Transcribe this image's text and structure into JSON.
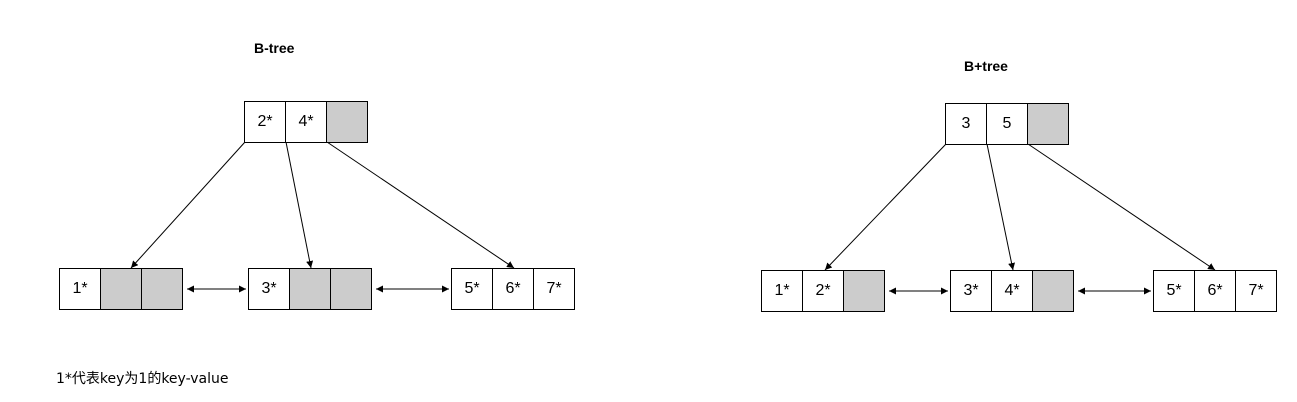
{
  "btree": {
    "title": "B-tree",
    "root": [
      "2*",
      "4*",
      ""
    ],
    "leaves": [
      [
        "1*",
        "",
        ""
      ],
      [
        "3*",
        "",
        ""
      ],
      [
        "5*",
        "6*",
        "7*"
      ]
    ]
  },
  "bplustree": {
    "title": "B+tree",
    "root": [
      "3",
      "5",
      ""
    ],
    "leaves": [
      [
        "1*",
        "2*",
        ""
      ],
      [
        "3*",
        "4*",
        ""
      ],
      [
        "5*",
        "6*",
        "7*"
      ]
    ]
  },
  "note": "1*代表key为1的key-value",
  "colors": {
    "empty_cell": "#cccccc",
    "border": "#000000",
    "background": "#ffffff"
  }
}
